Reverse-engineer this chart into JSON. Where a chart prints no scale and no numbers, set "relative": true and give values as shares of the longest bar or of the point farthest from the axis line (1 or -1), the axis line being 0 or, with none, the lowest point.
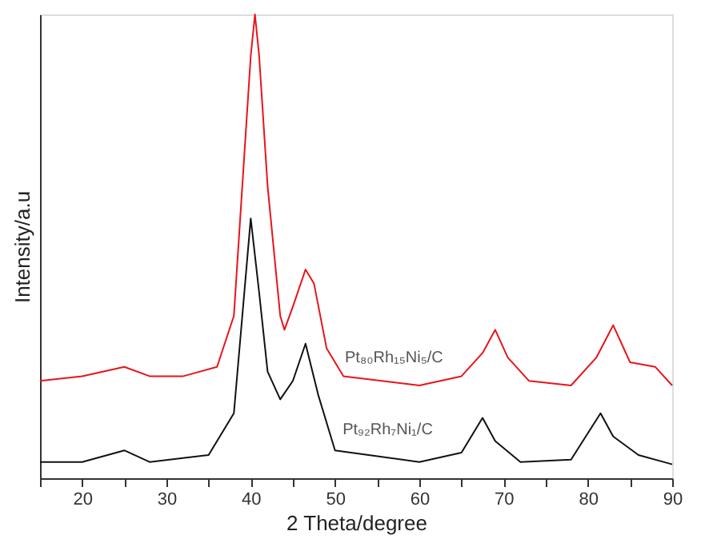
{
  "chart_data": {
    "type": "line",
    "relative": true,
    "xlabel": "2 Theta/degree",
    "ylabel": "Intensity/a.u",
    "xlim": [
      15,
      90
    ],
    "xticks": [
      {
        "value": 15,
        "label": null
      },
      20,
      {
        "value": 25,
        "label": null
      },
      30,
      {
        "value": 35,
        "label": null
      },
      40,
      {
        "value": 45,
        "label": null
      },
      50,
      {
        "value": 55,
        "label": null
      },
      60,
      {
        "value": 65,
        "label": null
      },
      70,
      {
        "value": 75,
        "label": null
      },
      80,
      {
        "value": 85,
        "label": null
      },
      90
    ],
    "grid": false,
    "marker": "none",
    "line_style": "solid",
    "series": [
      {
        "name": "Pt₈₀Rh₁₅Ni₅/C",
        "color": "#e8141a",
        "x": [
          15,
          20,
          25,
          28,
          32,
          36,
          38,
          39,
          40,
          40.5,
          41,
          42,
          43.5,
          44,
          45,
          46.5,
          47.5,
          49,
          51,
          60,
          65,
          67.5,
          69,
          70.5,
          73,
          78,
          81,
          83,
          85,
          88,
          90
        ],
        "values": [
          0.21,
          0.22,
          0.24,
          0.22,
          0.22,
          0.24,
          0.35,
          0.63,
          0.91,
          1.0,
          0.91,
          0.63,
          0.35,
          0.32,
          0.37,
          0.45,
          0.42,
          0.28,
          0.22,
          0.2,
          0.22,
          0.27,
          0.32,
          0.26,
          0.21,
          0.2,
          0.26,
          0.33,
          0.25,
          0.24,
          0.2
        ]
      },
      {
        "name": "Pt₉₂Rh₇Ni₁/C",
        "color": "#111111",
        "x": [
          15,
          20,
          25,
          28,
          35,
          38,
          39,
          40,
          41,
          42,
          43.5,
          45,
          46.5,
          48,
          50,
          60,
          65,
          67.5,
          69,
          72,
          78,
          81.5,
          83,
          86,
          90
        ],
        "values": [
          0.035,
          0.035,
          0.06,
          0.035,
          0.05,
          0.14,
          0.35,
          0.56,
          0.4,
          0.23,
          0.17,
          0.21,
          0.29,
          0.18,
          0.06,
          0.035,
          0.055,
          0.13,
          0.08,
          0.035,
          0.04,
          0.14,
          0.09,
          0.05,
          0.03
        ]
      }
    ]
  }
}
